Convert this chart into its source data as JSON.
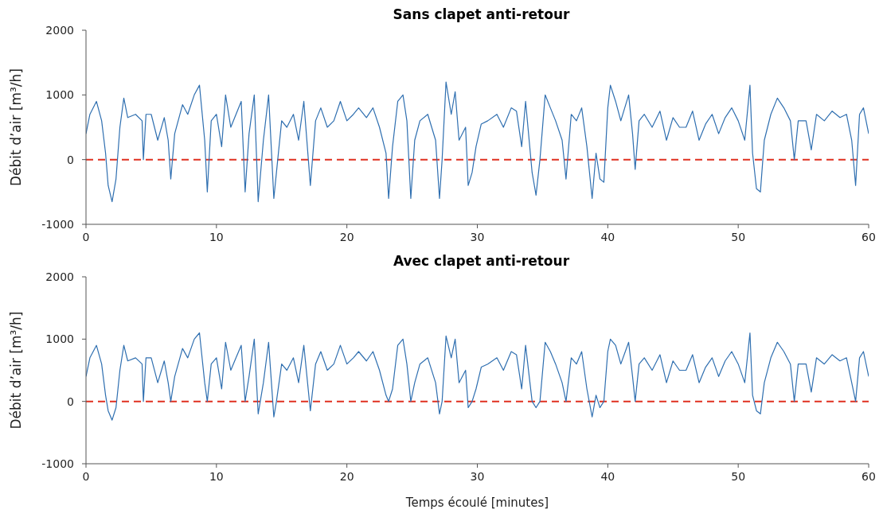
{
  "chart_data": [
    {
      "type": "line",
      "title": "Sans clapet anti-retour",
      "ylabel": "Débit d’air [m³/h]",
      "xlim": [
        0,
        60
      ],
      "xticks": [
        0,
        10,
        20,
        30,
        40,
        50,
        60
      ],
      "ylim": [
        -1000,
        2000
      ],
      "yticks": [
        -1000,
        0,
        1000,
        2000
      ],
      "grid": false,
      "marker": "none",
      "line_style": "solid",
      "ref_lines": [
        {
          "axis": "y",
          "value": 0,
          "color": "#e03020",
          "line_style": "dashed"
        }
      ],
      "series": [
        {
          "color": "#2f6fb0",
          "x": [
            0,
            0.3,
            0.8,
            1.2,
            1.5,
            1.7,
            2.0,
            2.3,
            2.6,
            2.9,
            3.2,
            3.8,
            4.3,
            4.4,
            4.6,
            5.0,
            5.5,
            6.0,
            6.3,
            6.5,
            6.8,
            7.4,
            7.8,
            8.3,
            8.7,
            9.1,
            9.3,
            9.6,
            10.0,
            10.4,
            10.7,
            11.1,
            11.5,
            11.9,
            12.2,
            12.5,
            12.9,
            13.2,
            13.6,
            14.0,
            14.4,
            14.6,
            15.0,
            15.4,
            15.9,
            16.3,
            16.7,
            17.2,
            17.6,
            18.0,
            18.5,
            19.0,
            19.5,
            20.0,
            20.5,
            20.9,
            21.5,
            22.0,
            22.5,
            23.0,
            23.2,
            23.5,
            23.9,
            24.3,
            24.6,
            24.9,
            25.2,
            25.6,
            26.2,
            26.8,
            27.1,
            27.3,
            27.6,
            28.0,
            28.3,
            28.6,
            29.1,
            29.3,
            29.6,
            29.9,
            30.3,
            30.8,
            31.5,
            32.0,
            32.6,
            33.0,
            33.4,
            33.7,
            34.2,
            34.5,
            34.8,
            35.2,
            35.6,
            36.0,
            36.5,
            36.8,
            37.2,
            37.6,
            38.0,
            38.4,
            38.8,
            39.1,
            39.4,
            39.7,
            40.0,
            40.2,
            40.6,
            41.0,
            41.6,
            41.9,
            42.1,
            42.4,
            42.8,
            43.4,
            44.0,
            44.5,
            45.0,
            45.5,
            46.0,
            46.5,
            47.0,
            47.5,
            48.0,
            48.5,
            49.0,
            49.5,
            50.0,
            50.5,
            50.9,
            51.1,
            51.4,
            51.7,
            52.0,
            52.5,
            53.0,
            53.5,
            54.0,
            54.3,
            54.6,
            55.2,
            55.6,
            56.0,
            56.6,
            57.2,
            57.8,
            58.3,
            58.7,
            59.0,
            59.3,
            59.6,
            60
          ],
          "values": [
            400,
            700,
            900,
            600,
            100,
            -400,
            -650,
            -300,
            500,
            950,
            650,
            700,
            600,
            0,
            700,
            700,
            300,
            650,
            300,
            -300,
            400,
            850,
            700,
            1000,
            1150,
            300,
            -500,
            600,
            700,
            200,
            1000,
            500,
            700,
            900,
            -500,
            400,
            1000,
            -650,
            300,
            1000,
            -600,
            -200,
            600,
            500,
            700,
            300,
            900,
            -400,
            600,
            800,
            500,
            600,
            900,
            600,
            700,
            800,
            650,
            800,
            500,
            100,
            -600,
            200,
            900,
            1000,
            600,
            -600,
            300,
            600,
            700,
            300,
            -600,
            0,
            1200,
            700,
            1050,
            300,
            500,
            -400,
            -200,
            200,
            550,
            600,
            700,
            500,
            800,
            750,
            200,
            900,
            -200,
            -550,
            0,
            1000,
            800,
            600,
            300,
            -300,
            700,
            600,
            800,
            200,
            -600,
            100,
            -300,
            -350,
            800,
            1150,
            900,
            600,
            1000,
            400,
            -150,
            600,
            700,
            500,
            750,
            300,
            650,
            500,
            500,
            750,
            300,
            550,
            700,
            400,
            650,
            800,
            600,
            300,
            1150,
            100,
            -450,
            -500,
            300,
            700,
            950,
            800,
            600,
            0,
            600,
            600,
            150,
            700,
            600,
            750,
            650,
            700,
            300,
            -400,
            700,
            800,
            400
          ]
        }
      ]
    },
    {
      "type": "line",
      "title": "Avec clapet anti-retour",
      "xlabel": "Temps écoulé [minutes]",
      "ylabel": "Débit d’air [m³/h]",
      "xlim": [
        0,
        60
      ],
      "xticks": [
        0,
        10,
        20,
        30,
        40,
        50,
        60
      ],
      "ylim": [
        -1000,
        2000
      ],
      "yticks": [
        -1000,
        0,
        1000,
        2000
      ],
      "grid": false,
      "marker": "none",
      "line_style": "solid",
      "ref_lines": [
        {
          "axis": "y",
          "value": 0,
          "color": "#e03020",
          "line_style": "dashed"
        }
      ],
      "series": [
        {
          "color": "#2f6fb0",
          "x": [
            0,
            0.3,
            0.8,
            1.2,
            1.5,
            1.7,
            2.0,
            2.3,
            2.6,
            2.9,
            3.2,
            3.8,
            4.3,
            4.4,
            4.6,
            5.0,
            5.5,
            6.0,
            6.3,
            6.5,
            6.8,
            7.4,
            7.8,
            8.3,
            8.7,
            9.1,
            9.3,
            9.6,
            10.0,
            10.4,
            10.7,
            11.1,
            11.5,
            11.9,
            12.2,
            12.5,
            12.9,
            13.2,
            13.6,
            14.0,
            14.4,
            14.6,
            15.0,
            15.4,
            15.9,
            16.3,
            16.7,
            17.2,
            17.6,
            18.0,
            18.5,
            19.0,
            19.5,
            20.0,
            20.5,
            20.9,
            21.5,
            22.0,
            22.5,
            23.0,
            23.2,
            23.5,
            23.9,
            24.3,
            24.6,
            24.9,
            25.2,
            25.6,
            26.2,
            26.8,
            27.1,
            27.3,
            27.6,
            28.0,
            28.3,
            28.6,
            29.1,
            29.3,
            29.6,
            29.9,
            30.3,
            30.8,
            31.5,
            32.0,
            32.6,
            33.0,
            33.4,
            33.7,
            34.2,
            34.5,
            34.8,
            35.2,
            35.6,
            36.0,
            36.5,
            36.8,
            37.2,
            37.6,
            38.0,
            38.4,
            38.8,
            39.1,
            39.4,
            39.7,
            40.0,
            40.2,
            40.6,
            41.0,
            41.6,
            41.9,
            42.1,
            42.4,
            42.8,
            43.4,
            44.0,
            44.5,
            45.0,
            45.5,
            46.0,
            46.5,
            47.0,
            47.5,
            48.0,
            48.5,
            49.0,
            49.5,
            50.0,
            50.5,
            50.9,
            51.1,
            51.4,
            51.7,
            52.0,
            52.5,
            53.0,
            53.5,
            54.0,
            54.3,
            54.6,
            55.2,
            55.6,
            56.0,
            56.6,
            57.2,
            57.8,
            58.3,
            58.7,
            59.0,
            59.3,
            59.6,
            60
          ],
          "values": [
            400,
            700,
            900,
            600,
            100,
            -150,
            -300,
            -100,
            500,
            900,
            650,
            700,
            600,
            0,
            700,
            700,
            300,
            650,
            300,
            0,
            400,
            850,
            700,
            1000,
            1100,
            300,
            0,
            600,
            700,
            200,
            950,
            500,
            700,
            900,
            0,
            400,
            1000,
            -200,
            300,
            950,
            -250,
            0,
            600,
            500,
            700,
            300,
            900,
            -150,
            600,
            800,
            500,
            600,
            900,
            600,
            700,
            800,
            650,
            800,
            500,
            100,
            0,
            200,
            900,
            1000,
            600,
            0,
            300,
            600,
            700,
            300,
            -200,
            0,
            1050,
            700,
            1000,
            300,
            500,
            -100,
            0,
            200,
            550,
            600,
            700,
            500,
            800,
            750,
            200,
            900,
            0,
            -100,
            0,
            950,
            800,
            600,
            300,
            0,
            700,
            600,
            800,
            200,
            -250,
            100,
            -100,
            0,
            800,
            1000,
            900,
            600,
            950,
            400,
            0,
            600,
            700,
            500,
            750,
            300,
            650,
            500,
            500,
            750,
            300,
            550,
            700,
            400,
            650,
            800,
            600,
            300,
            1100,
            100,
            -150,
            -200,
            300,
            700,
            950,
            800,
            600,
            0,
            600,
            600,
            150,
            700,
            600,
            750,
            650,
            700,
            300,
            0,
            700,
            800,
            400
          ]
        }
      ]
    }
  ]
}
